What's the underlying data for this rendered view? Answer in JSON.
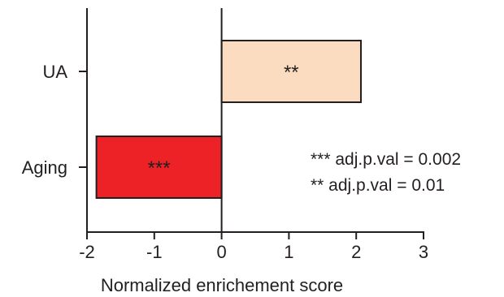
{
  "chart_data": {
    "type": "bar",
    "orientation": "horizontal",
    "categories": [
      "UA",
      "Aging"
    ],
    "values": [
      2.07,
      -1.86
    ],
    "bar_colors": [
      "#fbdcc0",
      "#ec2227"
    ],
    "bar_labels": [
      "**",
      "***"
    ],
    "xlabel": "Normalized enrichement score",
    "ylabel": "",
    "xlim": [
      -2,
      3
    ],
    "x_ticks": [
      -2,
      -1,
      0,
      1,
      2,
      3
    ],
    "x_tick_labels": [
      "-2",
      "-1",
      "0",
      "1",
      "2",
      "3"
    ],
    "grid": false,
    "annotations": [
      "*** adj.p.val = 0.002",
      "** adj.p.val = 0.01"
    ]
  },
  "colors": {
    "axis": "#231f20",
    "ua_bar": "#fbdcc0",
    "aging_bar": "#ec2227"
  }
}
